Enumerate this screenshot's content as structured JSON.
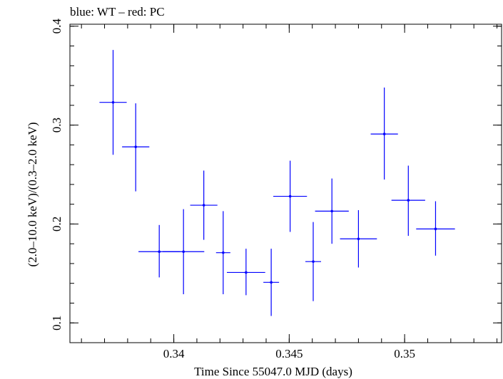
{
  "chart_data": {
    "type": "scatter",
    "title": "blue: WT – red: PC",
    "xlabel": "Time Since 55047.0 MJD (days)",
    "ylabel": "(2.0–10.0 keV)/(0.3–2.0 keV)",
    "xlim": [
      0.3355,
      0.3542
    ],
    "ylim": [
      0.08,
      0.402
    ],
    "x_ticks": [
      {
        "value": 0.34,
        "label": "0.34"
      },
      {
        "value": 0.345,
        "label": "0.345"
      },
      {
        "value": 0.35,
        "label": "0.35"
      }
    ],
    "y_ticks": [
      {
        "value": 0.1,
        "label": "0.1"
      },
      {
        "value": 0.2,
        "label": "0.2"
      },
      {
        "value": 0.3,
        "label": "0.3"
      },
      {
        "value": 0.4,
        "label": "0.4"
      }
    ],
    "x_minor_step": 0.001,
    "y_minor_step": 0.02,
    "series": [
      {
        "color": "#0000ff",
        "points": [
          {
            "x": 0.33737,
            "xerr": 0.00059,
            "y": 0.323,
            "ylo": 0.27,
            "yhi": 0.376
          },
          {
            "x": 0.33835,
            "xerr": 0.00059,
            "y": 0.278,
            "ylo": 0.233,
            "yhi": 0.322
          },
          {
            "x": 0.33937,
            "xerr": 0.0009,
            "y": 0.172,
            "ylo": 0.146,
            "yhi": 0.199
          },
          {
            "x": 0.34042,
            "xerr": 0.0009,
            "y": 0.172,
            "ylo": 0.129,
            "yhi": 0.215
          },
          {
            "x": 0.3413,
            "xerr": 0.00059,
            "y": 0.219,
            "ylo": 0.184,
            "yhi": 0.254
          },
          {
            "x": 0.34214,
            "xerr": 0.00031,
            "y": 0.171,
            "ylo": 0.129,
            "yhi": 0.213
          },
          {
            "x": 0.34313,
            "xerr": 0.00083,
            "y": 0.151,
            "ylo": 0.128,
            "yhi": 0.175
          },
          {
            "x": 0.34422,
            "xerr": 0.00034,
            "y": 0.141,
            "ylo": 0.107,
            "yhi": 0.175
          },
          {
            "x": 0.34504,
            "xerr": 0.00073,
            "y": 0.228,
            "ylo": 0.192,
            "yhi": 0.264
          },
          {
            "x": 0.34604,
            "xerr": 0.00034,
            "y": 0.162,
            "ylo": 0.122,
            "yhi": 0.202
          },
          {
            "x": 0.34685,
            "xerr": 0.00073,
            "y": 0.213,
            "ylo": 0.18,
            "yhi": 0.246
          },
          {
            "x": 0.348,
            "xerr": 0.0008,
            "y": 0.185,
            "ylo": 0.156,
            "yhi": 0.214
          },
          {
            "x": 0.34912,
            "xerr": 0.00059,
            "y": 0.291,
            "ylo": 0.245,
            "yhi": 0.338
          },
          {
            "x": 0.35016,
            "xerr": 0.00073,
            "y": 0.224,
            "ylo": 0.188,
            "yhi": 0.259
          },
          {
            "x": 0.35134,
            "xerr": 0.00084,
            "y": 0.195,
            "ylo": 0.168,
            "yhi": 0.223
          }
        ]
      }
    ],
    "grid": false,
    "legend": "none"
  }
}
